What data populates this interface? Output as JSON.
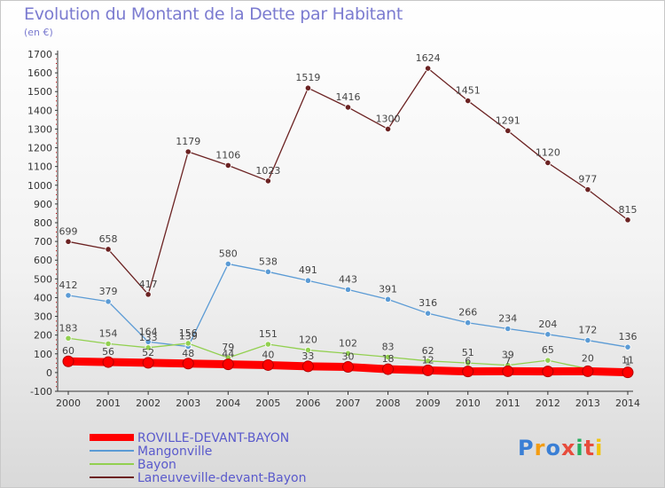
{
  "chart_data": {
    "type": "line",
    "title": "Evolution du Montant de la Dette par Habitant",
    "subtitle": "(en €)",
    "xlabel": "",
    "ylabel": "",
    "ylim": [
      -100,
      1700
    ],
    "yticks": [
      -100,
      0,
      100,
      200,
      300,
      400,
      500,
      600,
      700,
      800,
      900,
      1000,
      1100,
      1200,
      1300,
      1400,
      1500,
      1600,
      1700
    ],
    "categories": [
      "2000",
      "2001",
      "2002",
      "2003",
      "2004",
      "2005",
      "2006",
      "2007",
      "2008",
      "2009",
      "2010",
      "2011",
      "2012",
      "2013",
      "2014"
    ],
    "legend_position": "bottom-left",
    "series": [
      {
        "name": "ROVILLE-DEVANT-BAYON",
        "color": "#ff0000",
        "values": [
          60,
          56,
          52,
          48,
          44,
          40,
          33,
          30,
          18,
          12,
          6,
          7,
          6,
          7,
          1
        ],
        "labels": [
          "60",
          "56",
          "52",
          "48",
          "44",
          "40",
          "33",
          "30",
          "18",
          "12",
          "6",
          "7",
          "",
          "",
          "1"
        ]
      },
      {
        "name": "Mangonville",
        "color": "#5b9bd5",
        "values": [
          412,
          379,
          164,
          139,
          580,
          538,
          491,
          443,
          391,
          316,
          266,
          234,
          204,
          172,
          136
        ],
        "labels": [
          "412",
          "379",
          "164",
          "139",
          "580",
          "538",
          "491",
          "443",
          "391",
          "316",
          "266",
          "234",
          "204",
          "172",
          "136"
        ]
      },
      {
        "name": "Bayon",
        "color": "#92d050",
        "values": [
          183,
          154,
          133,
          156,
          79,
          151,
          120,
          102,
          83,
          62,
          51,
          39,
          65,
          20,
          11
        ],
        "labels": [
          "183",
          "154",
          "133",
          "156",
          "79",
          "151",
          "120",
          "102",
          "83",
          "62",
          "51",
          "39",
          "65",
          "20",
          "11"
        ]
      },
      {
        "name": "Laneuveville-devant-Bayon",
        "color": "#6b2222",
        "values": [
          699,
          658,
          417,
          1179,
          1106,
          1023,
          1519,
          1416,
          1300,
          1624,
          1451,
          1291,
          1120,
          977,
          815
        ],
        "labels": [
          "699",
          "658",
          "417",
          "1179",
          "1106",
          "1023",
          "1519",
          "1416",
          "1300",
          "1624",
          "1451",
          "1291",
          "1120",
          "977",
          "815"
        ]
      }
    ]
  },
  "logo": {
    "text": "Proxiti",
    "letter_colors": [
      "#3a7fd5",
      "#f39c12",
      "#3a7fd5",
      "#e74c3c",
      "#27ae60",
      "#e74c3c",
      "#f1c40f"
    ]
  }
}
